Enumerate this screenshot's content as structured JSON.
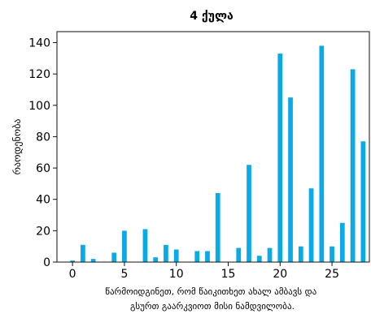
{
  "chart_data": {
    "type": "bar",
    "title": "4 ქულა",
    "xlabel": "წარმოიდგინეთ, რომ წაიკითხეთ ახალ ამბავს და გსურთ გაარკვიოთ მისი ნამდვილობა.",
    "ylabel": "რაოდენობა",
    "xlim": [
      -1.5,
      28.6
    ],
    "ylim": [
      0,
      147
    ],
    "xticks": [
      0,
      5,
      10,
      15,
      20,
      25
    ],
    "yticks": [
      0,
      20,
      40,
      60,
      80,
      100,
      120,
      140
    ],
    "color": "#0aaae6",
    "x": [
      0,
      1,
      2,
      3,
      4,
      5,
      6,
      7,
      8,
      9,
      10,
      11,
      12,
      13,
      14,
      15,
      16,
      17,
      18,
      19,
      20,
      21,
      22,
      23,
      24,
      25,
      26,
      27,
      28
    ],
    "values": [
      1,
      11,
      2,
      0,
      6,
      20,
      0,
      21,
      3,
      11,
      8,
      0,
      7,
      7,
      44,
      0,
      9,
      62,
      4,
      9,
      133,
      105,
      10,
      47,
      138,
      10,
      25,
      123,
      77
    ]
  }
}
